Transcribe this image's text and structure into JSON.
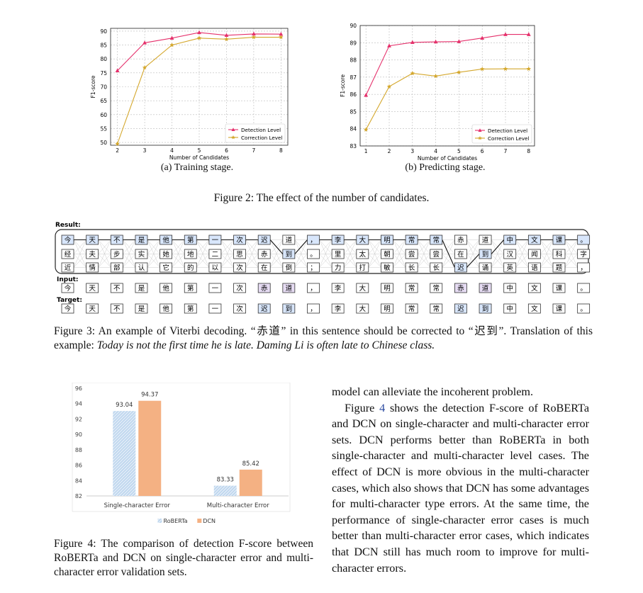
{
  "fig2": {
    "caption": "Figure 2: The effect of the number of candidates.",
    "a_caption": "(a) Training stage.",
    "b_caption": "(b) Predicting stage."
  },
  "chart_data": [
    {
      "type": "line",
      "xlabel": "Number of Candidates",
      "ylabel": "F1-score",
      "x": [
        2,
        3,
        4,
        5,
        6,
        7,
        8
      ],
      "xticks": [
        2,
        3,
        4,
        5,
        6,
        7,
        8
      ],
      "yticks": [
        50,
        55,
        60,
        65,
        70,
        75,
        80,
        85,
        90
      ],
      "ylim": [
        49,
        91
      ],
      "grid": true,
      "legend": "bottom-right",
      "series": [
        {
          "name": "Detection Level",
          "color": "#e5306b",
          "marker": "triangle",
          "values": [
            75.8,
            85.8,
            87.5,
            89.5,
            88.5,
            89.0,
            88.9
          ]
        },
        {
          "name": "Correction Level",
          "color": "#d4a72c",
          "marker": "star",
          "values": [
            49.5,
            76.9,
            85.0,
            87.5,
            87.1,
            87.8,
            87.8
          ]
        }
      ]
    },
    {
      "type": "line",
      "xlabel": "Number of Candidates",
      "ylabel": "F1-score",
      "x": [
        1,
        2,
        3,
        4,
        5,
        6,
        7,
        8
      ],
      "xticks": [
        1,
        2,
        3,
        4,
        5,
        6,
        7,
        8
      ],
      "yticks": [
        83,
        84,
        85,
        86,
        87,
        88,
        89,
        90
      ],
      "ylim": [
        83,
        90
      ],
      "grid": true,
      "legend": "bottom-right",
      "series": [
        {
          "name": "Detection Level",
          "color": "#e5306b",
          "marker": "triangle",
          "values": [
            85.95,
            88.82,
            89.02,
            89.05,
            89.07,
            89.27,
            89.48,
            89.48
          ]
        },
        {
          "name": "Correction Level",
          "color": "#d4a72c",
          "marker": "star",
          "values": [
            83.95,
            86.45,
            87.22,
            87.06,
            87.28,
            87.47,
            87.48,
            87.48
          ]
        }
      ]
    },
    {
      "type": "bar",
      "categories": [
        "Single-character Error",
        "Multi-character Error"
      ],
      "yticks": [
        82,
        84,
        86,
        88,
        90,
        92,
        94,
        96
      ],
      "ylim": [
        82,
        96
      ],
      "legend": "bottom",
      "series": [
        {
          "name": "RoBERTa",
          "color": "#9dc3e6",
          "pattern": "hatch",
          "values": [
            93.04,
            83.33
          ],
          "labels": [
            "93.04",
            "83.33"
          ]
        },
        {
          "name": "DCN",
          "color": "#f4b183",
          "values": [
            94.37,
            85.42
          ],
          "labels": [
            "94.37",
            "85.42"
          ]
        }
      ]
    }
  ],
  "fig3": {
    "result_label": "Result:",
    "input_label": "Input:",
    "target_label": "Target:",
    "row1": [
      "今",
      "天",
      "不",
      "是",
      "他",
      "第",
      "一",
      "次",
      "迟",
      "道",
      "，",
      "李",
      "大",
      "明",
      "常",
      "常",
      "赤",
      "道",
      "中",
      "文",
      "课",
      "。"
    ],
    "row2": [
      "经",
      "夫",
      "步",
      "实",
      "她",
      "地",
      "二",
      "思",
      "赤",
      "到",
      "。",
      "里",
      "太",
      "朝",
      "尝",
      "尝",
      "在",
      "到",
      "汉",
      "闻",
      "科",
      "字"
    ],
    "row3": [
      "近",
      "情",
      "部",
      "认",
      "它",
      "的",
      "以",
      "次",
      "在",
      "倒",
      "；",
      "力",
      "打",
      "敏",
      "长",
      "长",
      "迟",
      "诵",
      "英",
      "语",
      "题",
      "，"
    ],
    "path_rows": [
      0,
      0,
      0,
      0,
      0,
      0,
      0,
      0,
      0,
      1,
      0,
      0,
      0,
      0,
      0,
      0,
      2,
      1,
      0,
      0,
      0,
      0
    ],
    "input": [
      "今",
      "天",
      "不",
      "是",
      "他",
      "第",
      "一",
      "次",
      "赤",
      "道",
      "，",
      "李",
      "大",
      "明",
      "常",
      "常",
      "赤",
      "道",
      "中",
      "文",
      "课",
      "。"
    ],
    "input_wrong": [
      8,
      9,
      16,
      17
    ],
    "target": [
      "今",
      "天",
      "不",
      "是",
      "他",
      "第",
      "一",
      "次",
      "迟",
      "到",
      "，",
      "李",
      "大",
      "明",
      "常",
      "常",
      "迟",
      "到",
      "中",
      "文",
      "课",
      "。"
    ],
    "target_changed": [
      8,
      9,
      16,
      17
    ],
    "caption_a": "Figure 3: An example of Viterbi decoding. “赤道” in this sentence should be corrected to “迟到”. Translation of this example: ",
    "caption_b": "Today is not the first time he is late. Daming Li is often late to Chinese class."
  },
  "fig4": {
    "caption": "Figure 4: The comparison of detection F-score between RoBERTa and DCN on single-character error and multi-character error validation sets."
  },
  "body": {
    "p1": "model can alleviate the incoherent problem.",
    "p2a": "Figure ",
    "p2ref": "4",
    "p2b": " shows the detection F-score of RoBERTa and DCN on single-character and multi-character error sets. DCN performs better than RoBERTa in both single-character and multi-character level cases. The effect of DCN is more obvious in the multi-character cases, which also shows that DCN has some advantages for multi-character type errors. At the same time, the performance of single-character error cases is much better than multi-character error cases, which indicates that DCN still has much room to improve for multi-character errors."
  }
}
